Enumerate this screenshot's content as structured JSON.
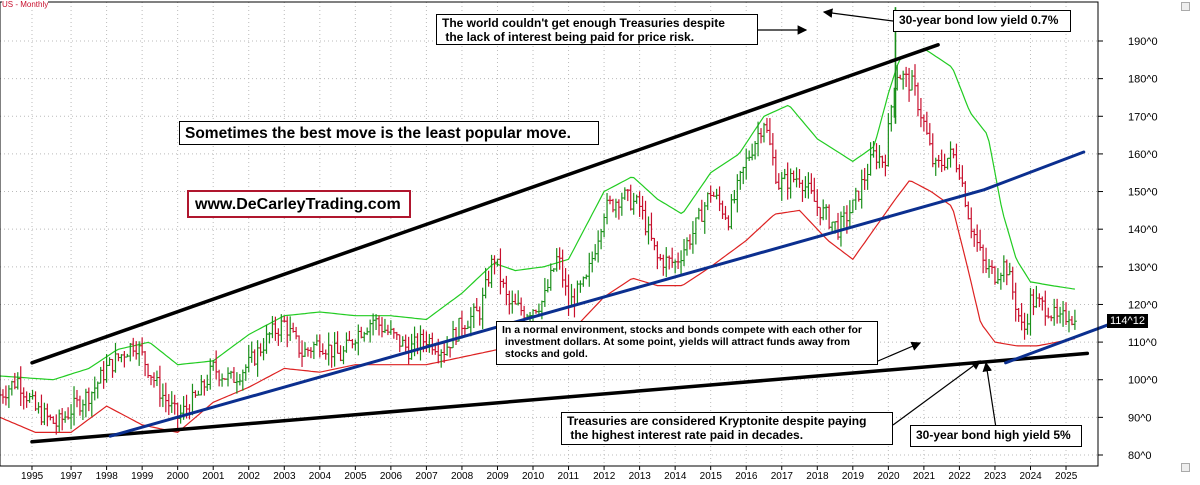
{
  "header": {
    "symbol_label": "US - Monthly"
  },
  "annotations": {
    "headline": "Sometimes the best move is the least popular move.",
    "website": "www.DeCarleyTrading.com",
    "treasury_demand": "The world couldn't get enough Treasuries despite\n the lack of interest being paid for price risk.",
    "low_yield": "30-year bond low yield 0.7%",
    "normal_env": "In a normal environment, stocks and bonds compete with each other for\n investment dollars. At some point, yields will attract funds away from\n stocks and gold.",
    "kryptonite": "Treasuries are considered Kryptonite despite paying\n the highest interest rate paid in decades.",
    "high_yield": "30-year bond high yield 5%"
  },
  "last_price": "114^12",
  "colors": {
    "up_bar": "#1a8f1a",
    "down_bar": "#c8102e",
    "upper_band": "#22cc22",
    "lower_band": "#dd2222",
    "trendline_black": "#000000",
    "trendline_blue": "#0b2f8f",
    "url_border": "#b0162e"
  },
  "chart_data": {
    "type": "line",
    "title": "",
    "ylim": [
      78,
      200
    ],
    "y_ticks": [
      "190^0",
      "180^0",
      "170^0",
      "160^0",
      "150^0",
      "140^0",
      "130^0",
      "120^0",
      "110^0",
      "100^0",
      "90^0",
      "80^0"
    ],
    "y_tick_values": [
      190,
      180,
      170,
      160,
      150,
      140,
      130,
      120,
      110,
      100,
      90,
      80
    ],
    "x_ticks": [
      "1995",
      "1997",
      "1998",
      "1999",
      "2000",
      "2001",
      "2002",
      "2003",
      "2004",
      "2005",
      "2006",
      "2007",
      "2008",
      "2009",
      "2010",
      "2011",
      "2012",
      "2013",
      "2014",
      "2015",
      "2016",
      "2017",
      "2018",
      "2019",
      "2020",
      "2021",
      "2022",
      "2023",
      "2024",
      "2025"
    ],
    "x_tick_years": [
      1995.9,
      1997,
      1998,
      1999,
      2000,
      2001,
      2002,
      2003,
      2004,
      2005,
      2006,
      2007,
      2008,
      2009,
      2010,
      2011,
      2012,
      2013,
      2014,
      2015,
      2016,
      2017,
      2018,
      2019,
      2020,
      2021,
      2022,
      2023,
      2024,
      2025
    ],
    "xlim": [
      1995.0,
      2025.9
    ],
    "grid": true,
    "price_anchors": [
      [
        1995.0,
        96
      ],
      [
        1995.5,
        100
      ],
      [
        1996.0,
        92
      ],
      [
        1996.6,
        88
      ],
      [
        1997.0,
        92
      ],
      [
        1997.6,
        97
      ],
      [
        1998.0,
        103
      ],
      [
        1998.8,
        110
      ],
      [
        1999.5,
        97
      ],
      [
        2000.0,
        90
      ],
      [
        2000.6,
        96
      ],
      [
        2001.0,
        103
      ],
      [
        2001.5,
        100
      ],
      [
        2002.0,
        104
      ],
      [
        2002.6,
        112
      ],
      [
        2003.0,
        115
      ],
      [
        2003.5,
        107
      ],
      [
        2004.0,
        110
      ],
      [
        2004.6,
        106
      ],
      [
        2005.0,
        112
      ],
      [
        2005.5,
        116
      ],
      [
        2006.0,
        112
      ],
      [
        2006.5,
        108
      ],
      [
        2007.0,
        111
      ],
      [
        2007.5,
        108
      ],
      [
        2008.0,
        115
      ],
      [
        2008.5,
        118
      ],
      [
        2008.9,
        133
      ],
      [
        2009.3,
        120
      ],
      [
        2009.8,
        118
      ],
      [
        2010.3,
        121
      ],
      [
        2010.7,
        133
      ],
      [
        2011.0,
        120
      ],
      [
        2011.5,
        126
      ],
      [
        2012.0,
        145
      ],
      [
        2012.5,
        149
      ],
      [
        2013.0,
        146
      ],
      [
        2013.5,
        132
      ],
      [
        2014.0,
        131
      ],
      [
        2014.5,
        139
      ],
      [
        2015.0,
        150
      ],
      [
        2015.5,
        143
      ],
      [
        2016.0,
        158
      ],
      [
        2016.5,
        169
      ],
      [
        2016.9,
        152
      ],
      [
        2017.5,
        154
      ],
      [
        2018.0,
        146
      ],
      [
        2018.6,
        140
      ],
      [
        2019.0,
        146
      ],
      [
        2019.6,
        160
      ],
      [
        2019.9,
        158
      ],
      [
        2020.2,
        182
      ],
      [
        2020.7,
        178
      ],
      [
        2021.0,
        168
      ],
      [
        2021.3,
        156
      ],
      [
        2021.8,
        160
      ],
      [
        2022.0,
        156
      ],
      [
        2022.3,
        142
      ],
      [
        2022.7,
        130
      ],
      [
        2023.0,
        128
      ],
      [
        2023.3,
        131
      ],
      [
        2023.8,
        112
      ],
      [
        2024.0,
        121
      ],
      [
        2024.5,
        119
      ],
      [
        2024.8,
        115
      ],
      [
        2025.1,
        118
      ],
      [
        2025.3,
        114
      ]
    ],
    "upper_band": [
      [
        1995.0,
        101
      ],
      [
        1996.5,
        100
      ],
      [
        1997.5,
        103
      ],
      [
        1998.3,
        108
      ],
      [
        1999.2,
        110
      ],
      [
        2000.0,
        104
      ],
      [
        2001.0,
        105
      ],
      [
        2002.0,
        112
      ],
      [
        2003.0,
        117
      ],
      [
        2004.0,
        118
      ],
      [
        2005.0,
        117
      ],
      [
        2006.0,
        117
      ],
      [
        2007.0,
        116
      ],
      [
        2008.0,
        123
      ],
      [
        2008.9,
        131
      ],
      [
        2009.5,
        129
      ],
      [
        2010.3,
        130
      ],
      [
        2011.0,
        132
      ],
      [
        2012.0,
        150
      ],
      [
        2012.8,
        154
      ],
      [
        2013.5,
        148
      ],
      [
        2014.2,
        144
      ],
      [
        2015.0,
        155
      ],
      [
        2015.8,
        160
      ],
      [
        2016.5,
        170
      ],
      [
        2017.2,
        173
      ],
      [
        2018.0,
        164
      ],
      [
        2019.0,
        158
      ],
      [
        2019.6,
        162
      ],
      [
        2020.0,
        176
      ],
      [
        2020.3,
        185
      ],
      [
        2021.0,
        188
      ],
      [
        2021.8,
        183
      ],
      [
        2022.3,
        171
      ],
      [
        2022.8,
        165
      ],
      [
        2023.2,
        145
      ],
      [
        2023.6,
        132
      ],
      [
        2024.0,
        126
      ],
      [
        2024.6,
        125
      ],
      [
        2025.3,
        124
      ]
    ],
    "lower_band": [
      [
        1995.0,
        90
      ],
      [
        1996.0,
        86
      ],
      [
        1997.0,
        86
      ],
      [
        1998.0,
        93
      ],
      [
        1999.0,
        88
      ],
      [
        2000.0,
        86
      ],
      [
        2001.0,
        94
      ],
      [
        2002.0,
        98
      ],
      [
        2003.0,
        103
      ],
      [
        2004.0,
        102
      ],
      [
        2005.0,
        104
      ],
      [
        2006.0,
        104
      ],
      [
        2007.0,
        104
      ],
      [
        2008.0,
        106
      ],
      [
        2009.0,
        108
      ],
      [
        2010.0,
        110
      ],
      [
        2011.0,
        112
      ],
      [
        2012.0,
        122
      ],
      [
        2012.8,
        127
      ],
      [
        2013.5,
        125
      ],
      [
        2014.2,
        125
      ],
      [
        2015.0,
        130
      ],
      [
        2016.0,
        137
      ],
      [
        2016.8,
        144
      ],
      [
        2017.5,
        145
      ],
      [
        2018.3,
        137
      ],
      [
        2019.0,
        132
      ],
      [
        2019.6,
        140
      ],
      [
        2020.2,
        148
      ],
      [
        2020.6,
        153
      ],
      [
        2021.2,
        150
      ],
      [
        2021.8,
        146
      ],
      [
        2022.2,
        131
      ],
      [
        2022.6,
        115
      ],
      [
        2023.0,
        110
      ],
      [
        2023.6,
        109
      ],
      [
        2024.2,
        109
      ],
      [
        2025.3,
        111
      ]
    ],
    "trendlines": [
      {
        "name": "upper-channel",
        "color": "black",
        "points": [
          [
            1995.9,
            104.5
          ],
          [
            2021.4,
            189
          ]
        ]
      },
      {
        "name": "lower-support",
        "color": "black",
        "points": [
          [
            1995.9,
            83.5
          ],
          [
            2025.6,
            107
          ]
        ]
      },
      {
        "name": "rising-support",
        "color": "blue",
        "points": [
          [
            1998.1,
            85
          ],
          [
            2022.7,
            150.5
          ],
          [
            2025.5,
            160.5
          ]
        ]
      },
      {
        "name": "recent-support",
        "color": "blue",
        "points": [
          [
            2023.3,
            104.5
          ],
          [
            2026.3,
            115
          ]
        ]
      }
    ],
    "spike": {
      "x": 2020.2,
      "high": 199,
      "low": 168
    }
  }
}
